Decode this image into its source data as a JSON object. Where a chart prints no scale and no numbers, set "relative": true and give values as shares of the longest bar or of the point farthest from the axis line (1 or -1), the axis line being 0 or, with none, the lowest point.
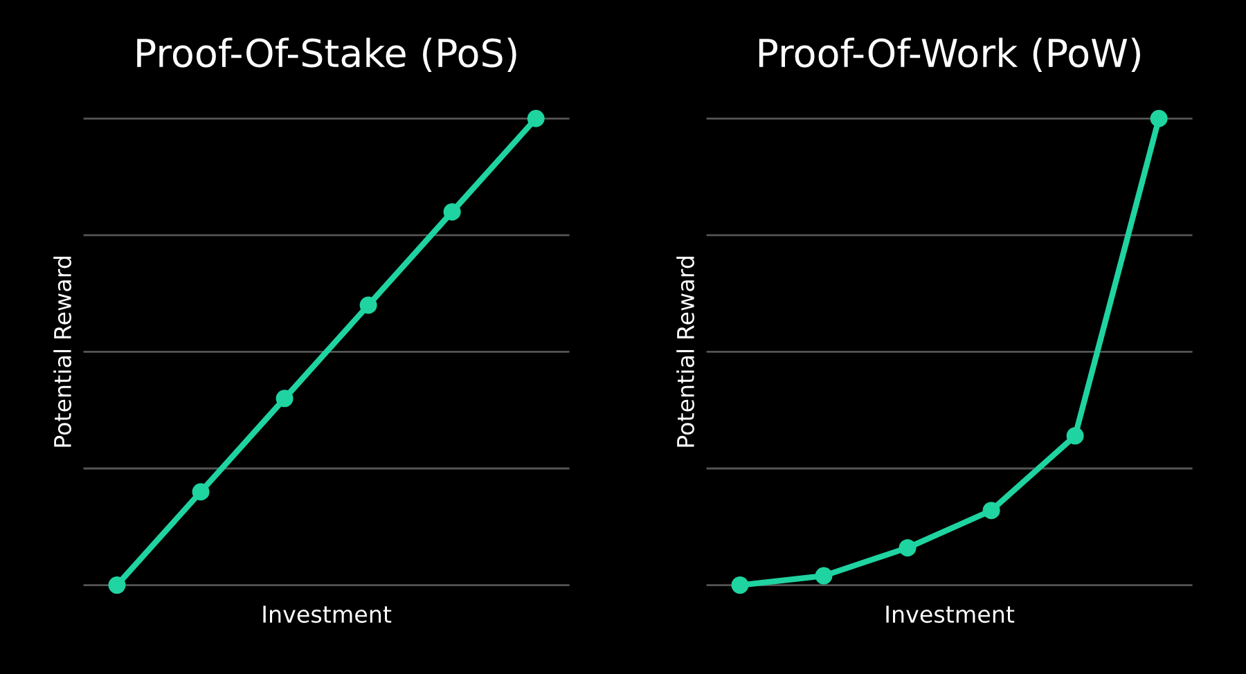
{
  "chart_data": [
    {
      "type": "line",
      "title": "Proof-Of-Stake (PoS)",
      "xlabel": "Investment",
      "ylabel": "Potential Reward",
      "relative": true,
      "categories": [
        null,
        null,
        null,
        null,
        null,
        null
      ],
      "series": [
        {
          "color": "#1fd4a0",
          "values": [
            0,
            0.2,
            0.4,
            0.6,
            0.8,
            1
          ]
        }
      ],
      "grid": "y",
      "marker": "circle",
      "line_style": "solid",
      "legend": false
    },
    {
      "type": "line",
      "title": "Proof-Of-Work (PoW)",
      "xlabel": "Investment",
      "ylabel": "Potential Reward",
      "relative": true,
      "categories": [
        null,
        null,
        null,
        null,
        null,
        null
      ],
      "series": [
        {
          "color": "#1fd4a0",
          "values": [
            0,
            0.02,
            0.08,
            0.16,
            0.32,
            1
          ]
        }
      ],
      "grid": "y",
      "marker": "circle",
      "line_style": "solid",
      "legend": false
    }
  ]
}
